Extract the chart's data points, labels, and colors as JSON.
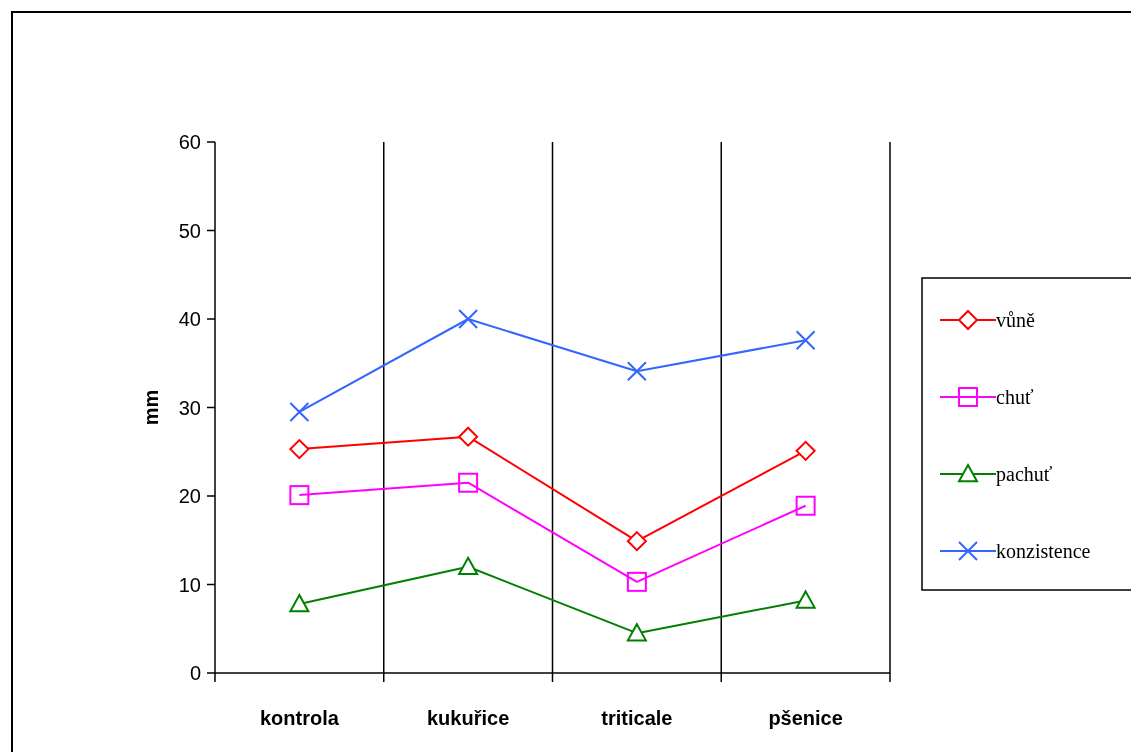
{
  "chart_data": {
    "type": "line",
    "ylabel": "mm",
    "categories": [
      "kontrola",
      "kukuřice",
      "triticale",
      "pšenice"
    ],
    "ylim": [
      0,
      60
    ],
    "yticks": [
      0,
      10,
      20,
      30,
      40,
      50,
      60
    ],
    "grid": "x",
    "legend": "right",
    "series": [
      {
        "name": "vůně",
        "color": "#ff0000",
        "marker": "diamond",
        "values": [
          25.3,
          26.7,
          14.9,
          25.1
        ]
      },
      {
        "name": "chuť",
        "color": "#ff00ff",
        "marker": "square",
        "values": [
          20.1,
          21.5,
          10.3,
          18.9
        ]
      },
      {
        "name": "pachuť",
        "color": "#008000",
        "marker": "triangle",
        "values": [
          7.8,
          12.0,
          4.5,
          8.2
        ]
      },
      {
        "name": "konzistence",
        "color": "#3366ff",
        "marker": "cross",
        "values": [
          29.5,
          40.0,
          34.1,
          37.6
        ]
      }
    ]
  }
}
